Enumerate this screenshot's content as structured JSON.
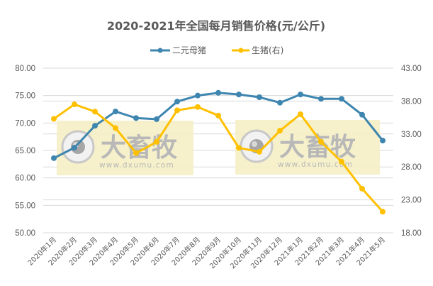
{
  "chart_data": {
    "type": "line",
    "title": "2020-2021年全国每月销售价格(元/公斤)",
    "xlabel": "",
    "ylabel": "",
    "categories": [
      "2020年1月",
      "2020年2月",
      "2020年3月",
      "2020年4月",
      "2020年5月",
      "2020年6月",
      "2020年7月",
      "2020年8月",
      "2020年9月",
      "2020年10月",
      "2020年11月",
      "2020年12月",
      "2021年1月",
      "2021年2月",
      "2021年3月",
      "2021年4月",
      "2021年5月"
    ],
    "series": [
      {
        "name": "二元母猪",
        "axis": "left",
        "color": "#3e85af",
        "values": [
          63.6,
          65.5,
          69.5,
          72.1,
          70.9,
          70.7,
          73.9,
          75.0,
          75.5,
          75.2,
          74.7,
          73.7,
          75.2,
          74.4,
          74.4,
          71.5,
          66.8
        ]
      },
      {
        "name": "生猪(右)",
        "axis": "right",
        "color": "#ffc000",
        "values": [
          35.3,
          37.5,
          36.4,
          33.9,
          30.1,
          31.8,
          36.6,
          37.1,
          35.8,
          30.9,
          30.3,
          33.5,
          36.0,
          31.8,
          28.8,
          24.7,
          21.2
        ]
      }
    ],
    "ylim": [
      50,
      80
    ],
    "y2lim": [
      18,
      43
    ],
    "yticks": [
      "80.00",
      "75.00",
      "70.00",
      "65.00",
      "60.00",
      "55.00",
      "50.00"
    ],
    "y2ticks": [
      "43.00",
      "38.00",
      "33.00",
      "28.00",
      "23.00",
      "18.00"
    ],
    "grid": true,
    "legend_position": "top"
  },
  "legend": {
    "items": [
      {
        "label": "二元母猪",
        "color": "#3e85af"
      },
      {
        "label": "生猪(右)",
        "color": "#ffc000"
      }
    ]
  },
  "watermark": {
    "brand": "大畜牧",
    "url": "www.dxumu.com",
    "color": "#f5efc4"
  }
}
